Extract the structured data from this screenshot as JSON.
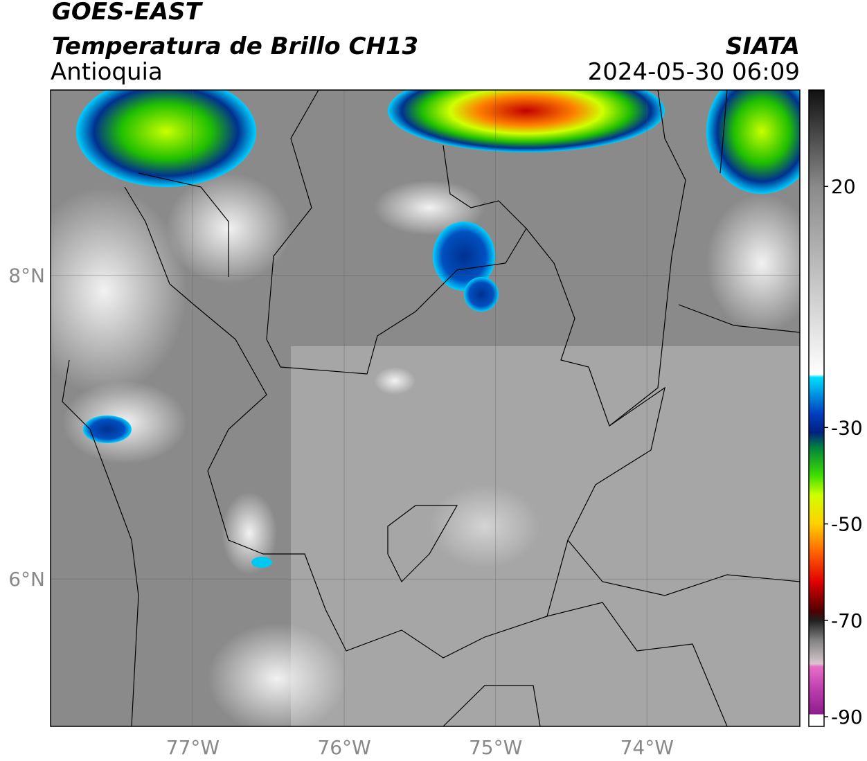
{
  "header": {
    "title": "GOES-EAST",
    "subtitle": "Temperatura de Brillo CH13",
    "region": "Antioquia",
    "source": "SIATA",
    "datetime": "2024-05-30 06:09"
  },
  "map": {
    "xlim": [
      -77.94,
      -72.99
    ],
    "ylim": [
      5.03,
      9.22
    ],
    "xticks": [
      {
        "value": -77,
        "label": "77°W"
      },
      {
        "value": -76,
        "label": "76°W"
      },
      {
        "value": -75,
        "label": "75°W"
      },
      {
        "value": -74,
        "label": "74°W"
      }
    ],
    "yticks": [
      {
        "value": 6,
        "label": "6°N"
      },
      {
        "value": 8,
        "label": "8°N"
      }
    ],
    "grid": true
  },
  "colorbar": {
    "lim": [
      -92,
      40
    ],
    "ticks": [
      -90,
      -70,
      -50,
      -30,
      20
    ],
    "stops": [
      {
        "value": -92,
        "color": "#ffffff"
      },
      {
        "value": -89.5,
        "color": "#ffffff"
      },
      {
        "value": -89.4,
        "color": "#8e1c8e"
      },
      {
        "value": -84,
        "color": "#c040b0"
      },
      {
        "value": -79.5,
        "color": "#e870c8"
      },
      {
        "value": -79,
        "color": "#d8c8d0"
      },
      {
        "value": -74,
        "color": "#808080"
      },
      {
        "value": -70,
        "color": "#202020"
      },
      {
        "value": -68,
        "color": "#500000"
      },
      {
        "value": -62,
        "color": "#e00000"
      },
      {
        "value": -56,
        "color": "#ff6000"
      },
      {
        "value": -50,
        "color": "#ffd000"
      },
      {
        "value": -44,
        "color": "#d0ff00"
      },
      {
        "value": -40,
        "color": "#40e000"
      },
      {
        "value": -34,
        "color": "#008040"
      },
      {
        "value": -31,
        "color": "#002080"
      },
      {
        "value": -27,
        "color": "#0040c0"
      },
      {
        "value": -19.5,
        "color": "#00e0ff"
      },
      {
        "value": -19,
        "color": "#ffffff"
      },
      {
        "value": 20,
        "color": "#8a8a8a"
      },
      {
        "value": 40,
        "color": "#101010"
      }
    ]
  }
}
